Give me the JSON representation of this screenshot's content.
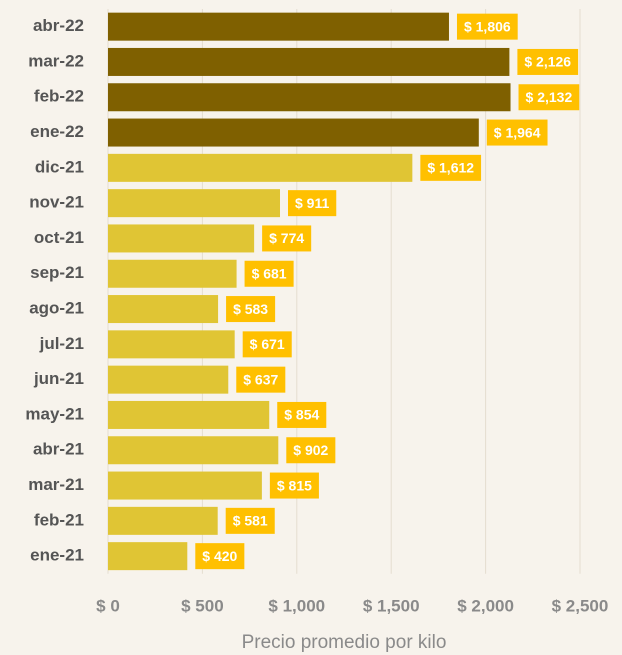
{
  "chart_data": {
    "type": "barh",
    "categories": [
      "abr-22",
      "mar-22",
      "feb-22",
      "ene-22",
      "dic-21",
      "nov-21",
      "oct-21",
      "sep-21",
      "ago-21",
      "jul-21",
      "jun-21",
      "may-21",
      "abr-21",
      "mar-21",
      "feb-21",
      "ene-21"
    ],
    "values": [
      1806,
      2126,
      2132,
      1964,
      1612,
      911,
      774,
      681,
      583,
      671,
      637,
      854,
      902,
      815,
      581,
      420
    ],
    "value_labels": [
      "$ 1,806",
      "$ 2,126",
      "$ 2,132",
      "$ 1,964",
      "$ 1,612",
      "$ 911",
      "$ 774",
      "$ 681",
      "$ 583",
      "$ 671",
      "$ 637",
      "$ 854",
      "$ 902",
      "$ 815",
      "$ 581",
      "$ 420"
    ],
    "colors": [
      "#7f6000",
      "#7f6000",
      "#7f6000",
      "#7f6000",
      "#e0c534",
      "#e0c534",
      "#e0c534",
      "#e0c534",
      "#e0c534",
      "#e0c534",
      "#e0c534",
      "#e0c534",
      "#e0c534",
      "#e0c534",
      "#e0c534",
      "#e0c534"
    ],
    "label_box_color": "#ffc000",
    "xlabel": "Precio promedio por kilo",
    "xlim": [
      0,
      2500
    ],
    "xticks": [
      {
        "value": 0,
        "label": "$ 0"
      },
      {
        "value": 500,
        "label": "$ 500"
      },
      {
        "value": 1000,
        "label": "$ 1,000"
      },
      {
        "value": 1500,
        "label": "$ 1,500"
      },
      {
        "value": 2000,
        "label": "$ 2,000"
      },
      {
        "value": 2500,
        "label": "$ 2,500"
      }
    ],
    "grid": true
  }
}
